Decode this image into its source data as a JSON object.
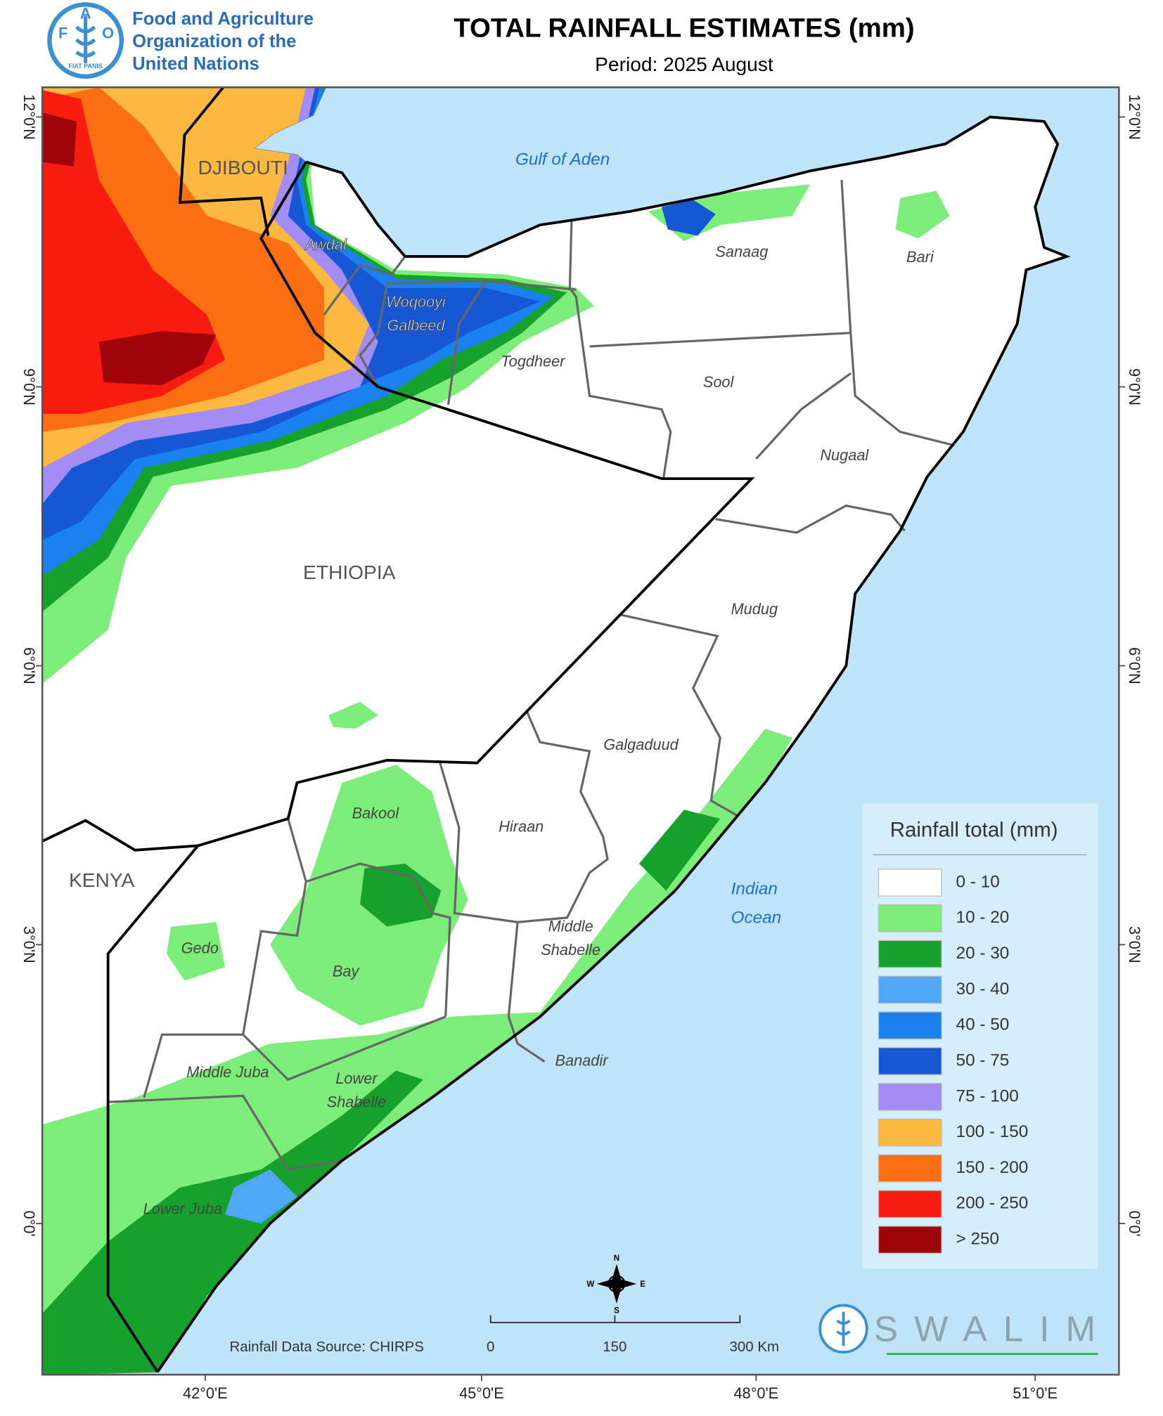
{
  "header": {
    "logo_letters": [
      "F",
      "A",
      "O"
    ],
    "logo_motto": "FIAT PANIS",
    "org": [
      "Food and Agriculture",
      "Organization of the",
      "United Nations"
    ],
    "title": "TOTAL RAINFALL ESTIMATES (mm)",
    "subtitle": "Period: 2025 August"
  },
  "map": {
    "countries": [
      "DJIBOUTI",
      "ETHIOPIA",
      "KENYA"
    ],
    "water": [
      "Gulf of Aden",
      "Indian",
      "Ocean"
    ],
    "regions": [
      "Awdal",
      [
        "Woqooyi",
        "Galbeed"
      ],
      "Togdheer",
      "Sanaag",
      "Bari",
      "Sool",
      "Nugaal",
      "Mudug",
      "Galgaduud",
      "Hiraan",
      "Bakool",
      "Gedo",
      "Bay",
      [
        "Middle",
        "Shabelle"
      ],
      "Banadir",
      "Middle Juba",
      [
        "Lower",
        "Shabelle"
      ],
      "Lower Juba"
    ],
    "lat_labels": [
      "12°0'N",
      "9°0'N",
      "6°0'N",
      "3°0'N",
      "0°0'"
    ],
    "lon_labels": [
      "42°0'E",
      "45°0'E",
      "48°0'E",
      "51°0'E"
    ]
  },
  "legend": {
    "title": "Rainfall total (mm)",
    "items": [
      {
        "label": "0 - 10",
        "color": "#ffffff"
      },
      {
        "label": "10 - 20",
        "color": "#7ded7a"
      },
      {
        "label": "20 - 30",
        "color": "#16a02c"
      },
      {
        "label": "30 - 40",
        "color": "#4fa8f5"
      },
      {
        "label": "40 - 50",
        "color": "#1a82f0"
      },
      {
        "label": "50 - 75",
        "color": "#1657d4"
      },
      {
        "label": "75 - 100",
        "color": "#a48cf5"
      },
      {
        "label": "100 - 150",
        "color": "#fdb840"
      },
      {
        "label": "150 - 200",
        "color": "#fb6e12"
      },
      {
        "label": "200 - 250",
        "color": "#f81b12"
      },
      {
        "label": "> 250",
        "color": "#9e0508"
      }
    ]
  },
  "footer": {
    "source": "Rainfall Data Source: CHIRPS",
    "scale": [
      "0",
      "150",
      "300 Km"
    ],
    "compass": [
      "N",
      "E",
      "S",
      "W"
    ],
    "brand": "SWALIM"
  }
}
